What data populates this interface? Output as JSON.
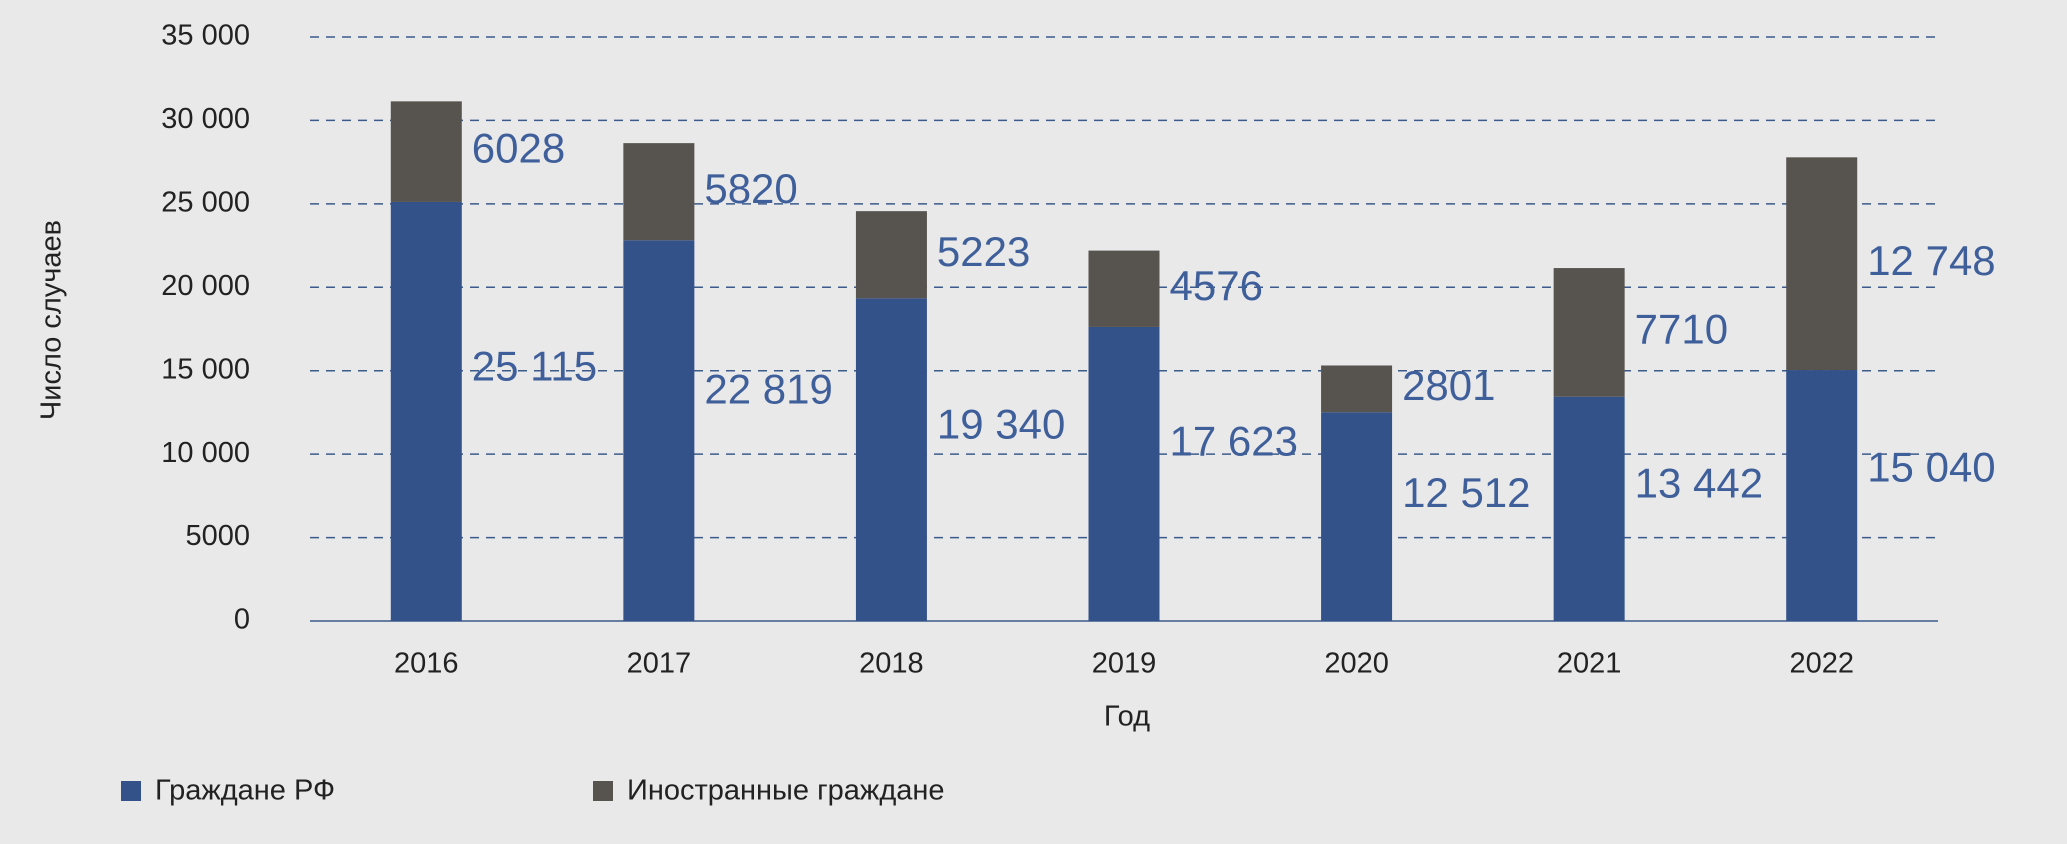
{
  "chart_data": {
    "type": "stacked-bar",
    "x_label": "Год",
    "y_label": "Число случаев",
    "categories": [
      "2016",
      "2017",
      "2018",
      "2019",
      "2020",
      "2021",
      "2022"
    ],
    "series": [
      {
        "name": "Граждане РФ",
        "color": "#33528a",
        "values": [
          25115,
          22819,
          19340,
          17623,
          12512,
          13442,
          15040
        ],
        "value_labels": [
          "25 115",
          "22 819",
          "19 340",
          "17 623",
          "12 512",
          "13 442",
          "15 040"
        ]
      },
      {
        "name": "Иностранные граждане",
        "color": "#57534f",
        "values": [
          6028,
          5820,
          5223,
          4576,
          2801,
          7710,
          12748
        ],
        "value_labels": [
          "6028",
          "5820",
          "5223",
          "4576",
          "2801",
          "7710",
          "12 748"
        ]
      }
    ],
    "ylim": [
      0,
      35000
    ],
    "yticks": [
      0,
      5000,
      {
        "value": 10000,
        "label": "10 000"
      },
      {
        "value": 15000,
        "label": "15 000"
      },
      {
        "value": 20000,
        "label": "20 000"
      },
      {
        "value": 25000,
        "label": "25 000"
      },
      {
        "value": 30000,
        "label": "30 000"
      },
      {
        "value": 35000,
        "label": "35 000"
      }
    ],
    "grid": true
  }
}
